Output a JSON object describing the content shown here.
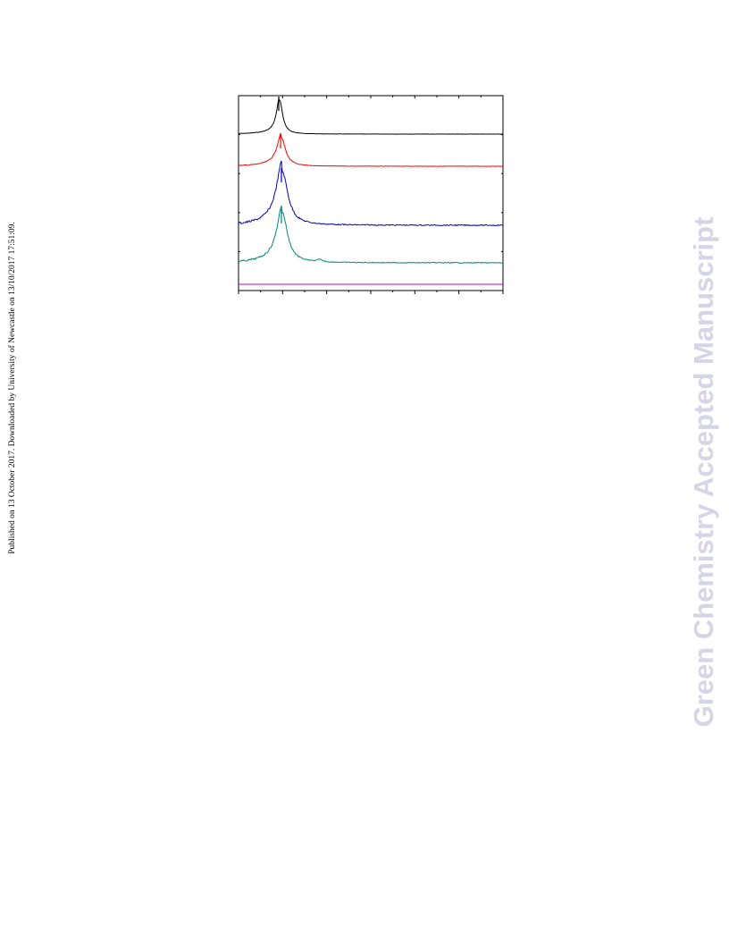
{
  "side_note": "Published on 13 October 2017. Downloaded by University of Newcastle on 13/10/2017 17:51:09.",
  "watermark": "Green Chemistry Accepted Manuscript",
  "figure": {
    "traces": [
      {
        "name": "black",
        "color": "#000000"
      },
      {
        "name": "red",
        "color": "#ff0000"
      },
      {
        "name": "blue",
        "color": "#0000cc"
      },
      {
        "name": "teal",
        "color": "#008877"
      },
      {
        "name": "magenta",
        "color": "#cc00cc"
      }
    ]
  }
}
